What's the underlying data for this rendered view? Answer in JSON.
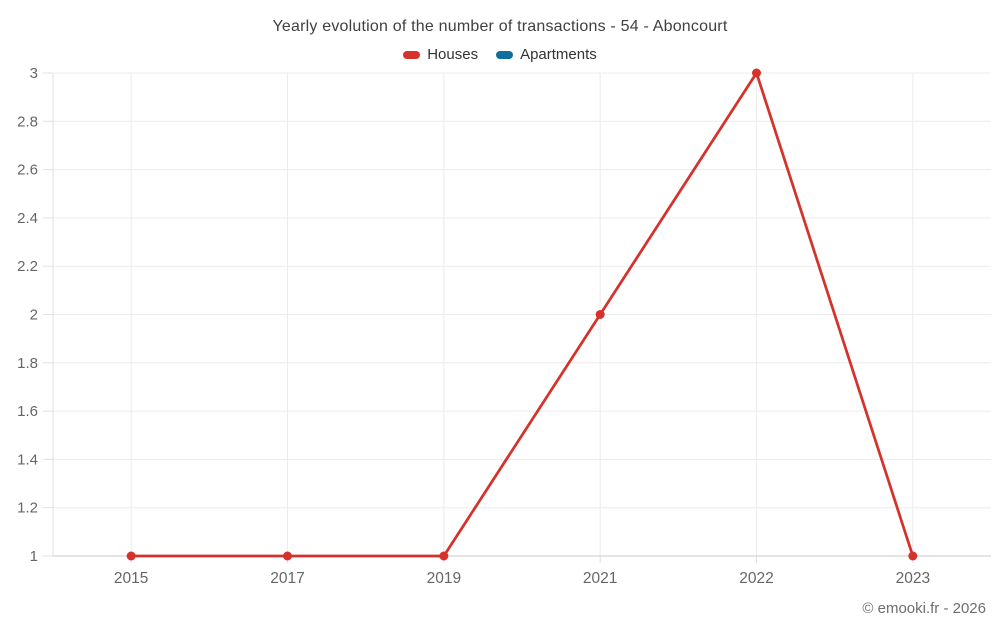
{
  "title": "Yearly evolution of the number of transactions - 54 - Aboncourt",
  "copyright": "© emooki.fr - 2026",
  "colors": {
    "houses": "#d5322c",
    "apartments": "#0e6e9c",
    "grid": "#ececec",
    "axis": "#e0e0e0",
    "axis_bottom": "#c9c9c9",
    "label": "#666666"
  },
  "chart_data": {
    "type": "line",
    "title": "Yearly evolution of the number of transactions - 54 - Aboncourt",
    "categories": [
      "2015",
      "2017",
      "2019",
      "2021",
      "2022",
      "2023"
    ],
    "series": [
      {
        "name": "Houses",
        "color": "#d5322c",
        "values": [
          1,
          1,
          1,
          2,
          3,
          1
        ]
      },
      {
        "name": "Apartments",
        "color": "#0e6e9c",
        "values": []
      }
    ],
    "xlabel": "",
    "ylabel": "",
    "ylim": [
      1,
      3
    ],
    "y_tick_step": 0.2,
    "grid": true,
    "legend_position": "top",
    "markers": true
  }
}
